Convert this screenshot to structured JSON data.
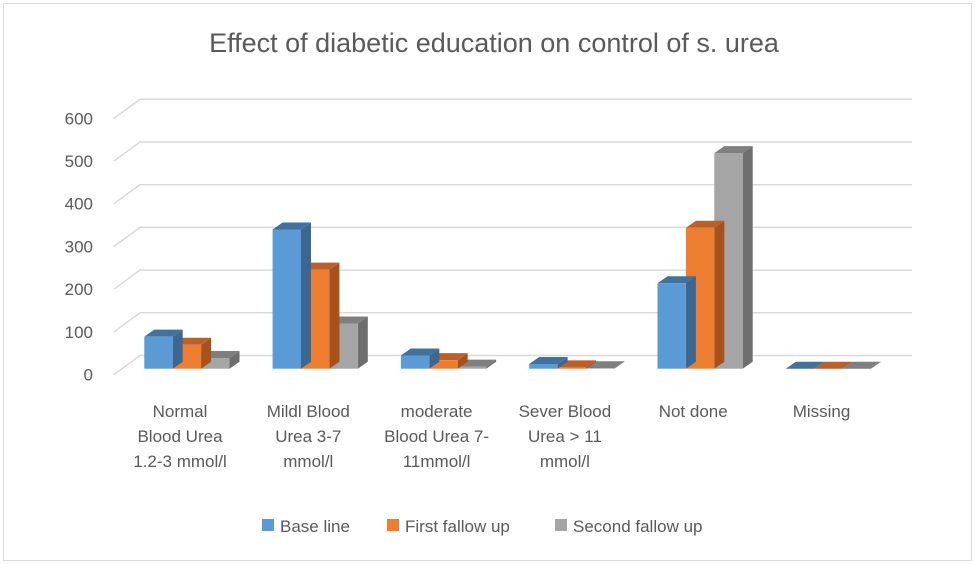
{
  "chart_data": {
    "type": "bar",
    "style": "3d-clustered-column",
    "title": "Effect of diabetic education on control of s. urea",
    "xlabel": "",
    "ylabel": "",
    "ylim": [
      0,
      600
    ],
    "yticks": [
      0,
      100,
      200,
      300,
      400,
      500,
      600
    ],
    "ytick_labels": [
      "0",
      "100",
      "200",
      "300",
      "400",
      "500",
      "600"
    ],
    "grid": true,
    "legend_position": "bottom",
    "categories": [
      "Normal Blood Urea 1.2-3 mmol/l",
      "Mildl Blood Urea 3-7 mmol/l",
      "moderate Blood Urea 7-11mmol/l",
      "Sever Blood Urea > 11 mmol/l",
      "Not done",
      "Missing"
    ],
    "category_label_lines": [
      [
        "Normal",
        "Blood Urea",
        "1.2-3 mmol/l"
      ],
      [
        "Mildl Blood",
        "Urea 3-7",
        "mmol/l"
      ],
      [
        "moderate",
        "Blood Urea 7-",
        "11mmol/l"
      ],
      [
        "Sever Blood",
        "Urea > 11",
        "mmol/l"
      ],
      [
        "Not done"
      ],
      [
        "Missing"
      ]
    ],
    "series": [
      {
        "name": "Base line",
        "color": "#5b9bd5",
        "top_color": "#41719c",
        "side_color": "#3b6792",
        "values": [
          75,
          326,
          31,
          11,
          200,
          0
        ]
      },
      {
        "name": "First fallow up",
        "color": "#ed7d31",
        "top_color": "#b9612a",
        "side_color": "#a5521c",
        "values": [
          56,
          232,
          20,
          3,
          330,
          0
        ]
      },
      {
        "name": "Second fallow up",
        "color": "#a5a5a5",
        "top_color": "#7f7f7f",
        "side_color": "#6e6e6e",
        "values": [
          25,
          106,
          5,
          1,
          505,
          0
        ]
      }
    ]
  },
  "colors": {
    "text": "#595959",
    "grid": "#d9d9d9",
    "border": "#d9d9d9"
  }
}
